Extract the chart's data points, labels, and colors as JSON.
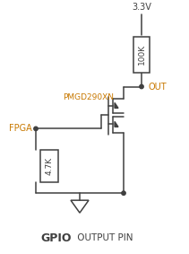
{
  "title_bold": "GPIO",
  "title_normal": " OUTPUT PIN",
  "label_3v3": "3.3V",
  "label_out": "OUT",
  "label_fpga": "FPGA",
  "label_pmgd": "PMGD290XN",
  "label_100k": "100K",
  "label_47k": "4.7K",
  "color_orange": "#C87800",
  "color_black": "#404040",
  "bg_color": "#ffffff",
  "fig_width": 2.11,
  "fig_height": 2.83,
  "dpi": 100,
  "lw": 1.1
}
